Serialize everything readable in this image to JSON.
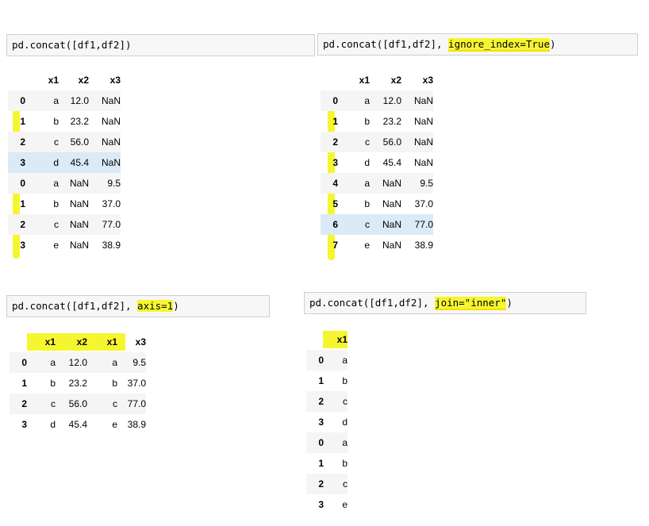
{
  "cells": [
    {
      "code_plain": "pd.concat([df1,df2])",
      "code_parts": [
        "pd.concat([df1,df2])",
        "",
        ""
      ],
      "columns": [
        "x1",
        "x2",
        "x3"
      ],
      "rows": [
        [
          "0",
          "a",
          "12.0",
          "NaN"
        ],
        [
          "1",
          "b",
          "23.2",
          "NaN"
        ],
        [
          "2",
          "c",
          "56.0",
          "NaN"
        ],
        [
          "3",
          "d",
          "45.4",
          "NaN"
        ],
        [
          "0",
          "a",
          "NaN",
          "9.5"
        ],
        [
          "1",
          "b",
          "NaN",
          "37.0"
        ],
        [
          "2",
          "c",
          "NaN",
          "77.0"
        ],
        [
          "3",
          "e",
          "NaN",
          "38.9"
        ]
      ]
    },
    {
      "code_parts": [
        "pd.concat([df1,df2], ",
        "ignore_index=True",
        ")"
      ],
      "columns": [
        "x1",
        "x2",
        "x3"
      ],
      "rows": [
        [
          "0",
          "a",
          "12.0",
          "NaN"
        ],
        [
          "1",
          "b",
          "23.2",
          "NaN"
        ],
        [
          "2",
          "c",
          "56.0",
          "NaN"
        ],
        [
          "3",
          "d",
          "45.4",
          "NaN"
        ],
        [
          "4",
          "a",
          "NaN",
          "9.5"
        ],
        [
          "5",
          "b",
          "NaN",
          "37.0"
        ],
        [
          "6",
          "c",
          "NaN",
          "77.0"
        ],
        [
          "7",
          "e",
          "NaN",
          "38.9"
        ]
      ]
    },
    {
      "code_parts": [
        "pd.concat([df1,df2], ",
        "axis=1",
        ")"
      ],
      "columns": [
        "x1",
        "x2",
        "x1",
        "x3"
      ],
      "rows": [
        [
          "0",
          "a",
          "12.0",
          "a",
          "9.5"
        ],
        [
          "1",
          "b",
          "23.2",
          "b",
          "37.0"
        ],
        [
          "2",
          "c",
          "56.0",
          "c",
          "77.0"
        ],
        [
          "3",
          "d",
          "45.4",
          "e",
          "38.9"
        ]
      ]
    },
    {
      "code_parts": [
        "pd.concat([df1,df2], ",
        "join=\"inner\"",
        ")"
      ],
      "columns": [
        "x1"
      ],
      "rows": [
        [
          "0",
          "a"
        ],
        [
          "1",
          "b"
        ],
        [
          "2",
          "c"
        ],
        [
          "3",
          "d"
        ],
        [
          "0",
          "a"
        ],
        [
          "1",
          "b"
        ],
        [
          "2",
          "c"
        ],
        [
          "3",
          "e"
        ]
      ]
    }
  ],
  "colors": {
    "highlight": "#f6f630",
    "hover_row": "#daeaf6",
    "stripe": "#f5f5f5",
    "input_bg": "#f7f7f7"
  }
}
